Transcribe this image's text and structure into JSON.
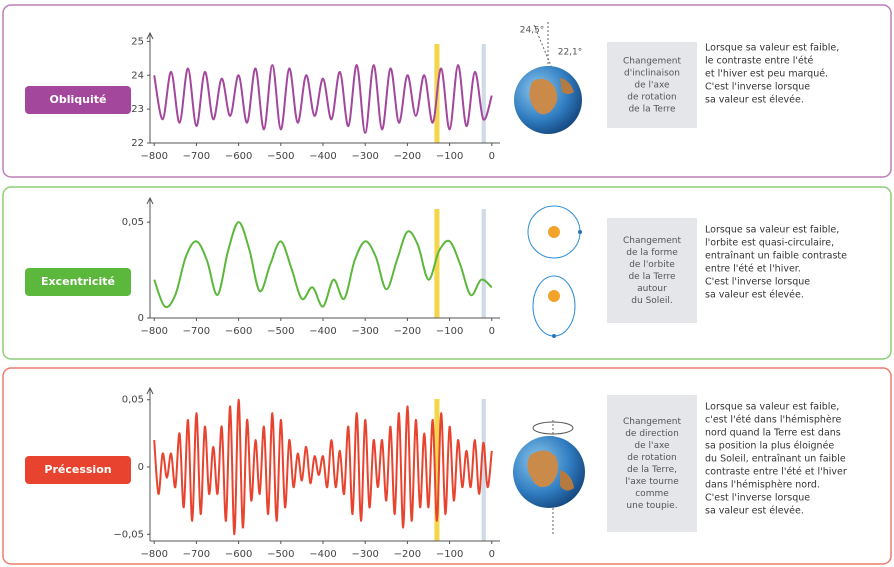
{
  "chart_data": [
    {
      "type": "line",
      "color": "#a3479d",
      "x": [
        -800,
        -780,
        -760,
        -740,
        -720,
        -700,
        -680,
        -660,
        -640,
        -620,
        -600,
        -580,
        -560,
        -540,
        -520,
        -500,
        -480,
        -460,
        -440,
        -420,
        -400,
        -380,
        -360,
        -340,
        -320,
        -300,
        -280,
        -260,
        -240,
        -220,
        -200,
        -180,
        -160,
        -140,
        -120,
        -100,
        -80,
        -60,
        -40,
        -20,
        0
      ],
      "values": [
        24.0,
        22.7,
        24.1,
        22.6,
        24.2,
        22.5,
        24.1,
        22.7,
        23.9,
        22.8,
        24.0,
        22.6,
        24.2,
        22.4,
        24.3,
        22.4,
        24.2,
        22.6,
        24.0,
        22.8,
        23.9,
        22.7,
        24.1,
        22.5,
        24.3,
        22.3,
        24.3,
        22.4,
        24.2,
        22.6,
        24.0,
        22.8,
        24.0,
        22.6,
        24.2,
        22.4,
        24.3,
        22.5,
        24.1,
        22.7,
        23.4
      ],
      "xlim": [
        -810,
        10
      ],
      "ylim": [
        22,
        25.1
      ],
      "xticks": [
        {
          "value": -800,
          "label": "−800"
        },
        {
          "value": -700,
          "label": "−700"
        },
        {
          "value": -600,
          "label": "−600"
        },
        {
          "value": -500,
          "label": "−500"
        },
        {
          "value": -400,
          "label": "−400"
        },
        {
          "value": -300,
          "label": "−300"
        },
        {
          "value": -200,
          "label": "−200"
        },
        {
          "value": -100,
          "label": "−100"
        },
        0
      ],
      "yticks": [
        22,
        23,
        24,
        25
      ],
      "spans": [
        {
          "xlim": [
            -136,
            -124
          ],
          "color": "#f2cf2e"
        },
        {
          "xlim": [
            -24,
            -14
          ],
          "color": "#c9d3e3"
        }
      ]
    },
    {
      "type": "line",
      "color": "#5cb83c",
      "x": [
        -800,
        -775,
        -750,
        -725,
        -700,
        -675,
        -650,
        -625,
        -600,
        -575,
        -550,
        -525,
        -500,
        -475,
        -450,
        -425,
        -400,
        -375,
        -350,
        -325,
        -300,
        -275,
        -250,
        -225,
        -200,
        -175,
        -150,
        -125,
        -100,
        -75,
        -50,
        -25,
        0
      ],
      "values": [
        0.02,
        0.006,
        0.012,
        0.032,
        0.04,
        0.03,
        0.012,
        0.035,
        0.05,
        0.036,
        0.014,
        0.028,
        0.04,
        0.026,
        0.01,
        0.016,
        0.006,
        0.02,
        0.01,
        0.03,
        0.04,
        0.032,
        0.015,
        0.03,
        0.045,
        0.038,
        0.02,
        0.035,
        0.04,
        0.028,
        0.012,
        0.02,
        0.016
      ],
      "xlim": [
        -810,
        10
      ],
      "ylim": [
        0,
        0.06
      ],
      "xticks": [
        {
          "value": -800,
          "label": "−800"
        },
        {
          "value": -700,
          "label": "−700"
        },
        {
          "value": -600,
          "label": "−600"
        },
        {
          "value": -500,
          "label": "−500"
        },
        {
          "value": -400,
          "label": "−400"
        },
        {
          "value": -300,
          "label": "−300"
        },
        {
          "value": -200,
          "label": "−200"
        },
        {
          "value": -100,
          "label": "−100"
        },
        0
      ],
      "yticks": [
        0,
        {
          "value": 0.05,
          "label": "0,05"
        }
      ],
      "spans": [
        {
          "xlim": [
            -136,
            -124
          ],
          "color": "#f2cf2e"
        },
        {
          "xlim": [
            -24,
            -14
          ],
          "color": "#c9d3e3"
        }
      ]
    },
    {
      "type": "line",
      "color": "#e8432e",
      "x": [
        -800,
        -790,
        -780,
        -770,
        -760,
        -750,
        -740,
        -730,
        -720,
        -710,
        -700,
        -690,
        -680,
        -670,
        -660,
        -650,
        -640,
        -630,
        -620,
        -610,
        -600,
        -590,
        -580,
        -570,
        -560,
        -550,
        -540,
        -530,
        -520,
        -510,
        -500,
        -490,
        -480,
        -470,
        -460,
        -450,
        -440,
        -430,
        -420,
        -410,
        -400,
        -390,
        -380,
        -370,
        -360,
        -350,
        -340,
        -330,
        -320,
        -310,
        -300,
        -290,
        -280,
        -270,
        -260,
        -250,
        -240,
        -230,
        -220,
        -210,
        -200,
        -190,
        -180,
        -170,
        -160,
        -150,
        -140,
        -130,
        -120,
        -110,
        -100,
        -90,
        -80,
        -70,
        -60,
        -50,
        -40,
        -30,
        -20,
        -10,
        0
      ],
      "values": [
        0.02,
        -0.02,
        0.01,
        -0.008,
        0.01,
        -0.015,
        0.025,
        -0.03,
        0.035,
        -0.04,
        0.04,
        -0.035,
        0.03,
        -0.02,
        0.015,
        -0.02,
        0.03,
        -0.04,
        0.045,
        -0.05,
        0.05,
        -0.045,
        0.035,
        -0.025,
        0.02,
        -0.02,
        0.03,
        -0.035,
        0.04,
        -0.04,
        0.035,
        -0.03,
        0.02,
        -0.015,
        0.01,
        -0.01,
        0.015,
        -0.012,
        0.008,
        -0.006,
        0.008,
        -0.015,
        0.02,
        -0.015,
        0.012,
        -0.02,
        0.03,
        -0.035,
        0.04,
        -0.04,
        0.035,
        -0.03,
        0.02,
        -0.015,
        0.02,
        -0.025,
        0.03,
        -0.035,
        0.04,
        -0.045,
        0.045,
        -0.04,
        0.035,
        -0.03,
        0.025,
        -0.03,
        0.035,
        -0.04,
        0.04,
        -0.035,
        0.03,
        -0.025,
        0.02,
        -0.015,
        0.012,
        -0.015,
        0.02,
        -0.02,
        0.018,
        -0.015,
        0.012
      ],
      "xlim": [
        -810,
        10
      ],
      "ylim": [
        -0.055,
        0.055
      ],
      "xticks": [
        {
          "value": -800,
          "label": "−800"
        },
        {
          "value": -700,
          "label": "−700"
        },
        {
          "value": -600,
          "label": "−600"
        },
        {
          "value": -500,
          "label": "−500"
        },
        {
          "value": -400,
          "label": "−400"
        },
        {
          "value": -300,
          "label": "−300"
        },
        {
          "value": -200,
          "label": "−200"
        },
        {
          "value": -100,
          "label": "−100"
        },
        0
      ],
      "yticks": [
        {
          "value": -0.05,
          "label": "−0,05"
        },
        0,
        {
          "value": 0.05,
          "label": "0,05"
        }
      ],
      "spans": [
        {
          "xlim": [
            -136,
            -124
          ],
          "color": "#f2cf2e"
        },
        {
          "xlim": [
            -24,
            -14
          ],
          "color": "#c9d3e3"
        }
      ]
    }
  ],
  "panels": [
    {
      "label": "Obliquité",
      "angles": [
        "24,5°",
        "22,1°"
      ],
      "box_lines": [
        "Changement",
        "d'inclinaison",
        "de l'axe",
        "de rotation",
        "de la Terre"
      ],
      "text_lines": [
        "Lorsque sa valeur est faible,",
        "le contraste entre l'été",
        "et l'hiver est peu marqué.",
        "C'est l'inverse lorsque",
        "sa valeur est élevée."
      ]
    },
    {
      "label": "Excentricité",
      "box_lines": [
        "Changement",
        "de la forme",
        "de l'orbite",
        "de la Terre",
        "autour",
        "du Soleil."
      ],
      "text_lines": [
        "Lorsque sa valeur est faible,",
        "l'orbite est quasi-circulaire,",
        "entraînant un faible contraste",
        "entre l'été et l'hiver.",
        "C'est l'inverse lorsque",
        "sa valeur est élevée."
      ]
    },
    {
      "label": "Précession",
      "box_lines": [
        "Changement",
        "de direction",
        "de l'axe",
        "de rotation",
        "de la Terre,",
        "l'axe tourne",
        "comme",
        "une toupie."
      ],
      "text_lines": [
        "Lorsque sa valeur est faible,",
        "c'est l'été dans l'hémisphère",
        "nord quand la Terre est dans",
        "sa position la plus éloignée",
        "du Soleil, entraînant un faible",
        "contraste entre l'été et l'hiver",
        "dans l'hémisphère nord.",
        "C'est l'inverse lorsque",
        "sa valeur est élevée."
      ]
    }
  ]
}
